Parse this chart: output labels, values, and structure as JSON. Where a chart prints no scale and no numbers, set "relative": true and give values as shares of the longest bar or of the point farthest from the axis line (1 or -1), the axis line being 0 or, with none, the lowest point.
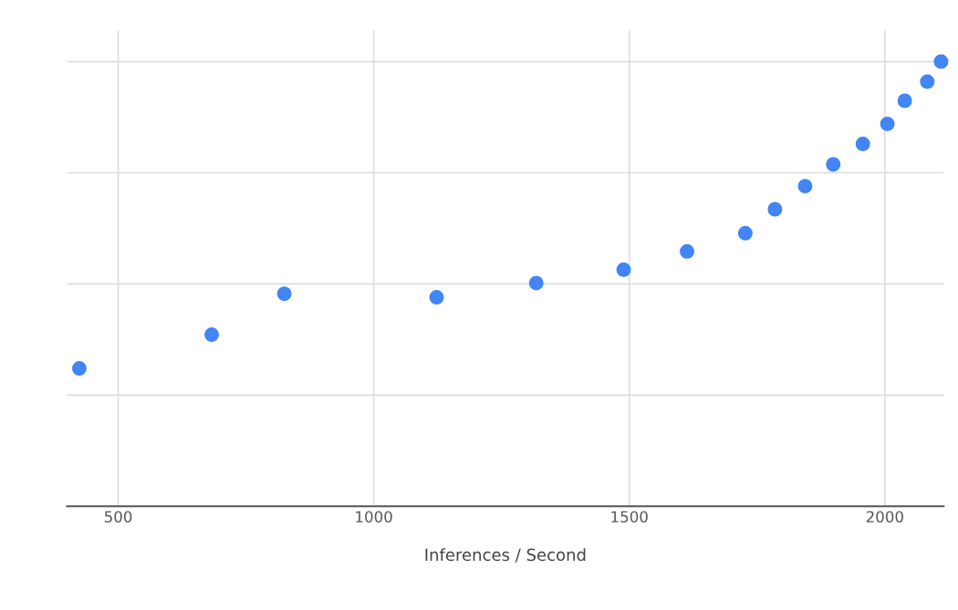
{
  "chart_data": {
    "type": "scatter",
    "xlabel": "Inferences / Second",
    "relative": true,
    "x": [
      424,
      683,
      825,
      1123,
      1318,
      1489,
      1613,
      1727,
      1785,
      1844,
      1899,
      1957,
      2005,
      2039,
      2083,
      2110
    ],
    "series": [
      {
        "color": "#4285f4",
        "values": [
          0.31,
          0.386,
          0.478,
          0.47,
          0.502,
          0.532,
          0.573,
          0.614,
          0.668,
          0.72,
          0.769,
          0.815,
          0.86,
          0.912,
          0.955,
          1
        ]
      }
    ],
    "xlim": [
      400,
      2115
    ],
    "xticks": [
      500,
      1000,
      1500,
      2000
    ],
    "grid": true,
    "marker": "circle"
  }
}
